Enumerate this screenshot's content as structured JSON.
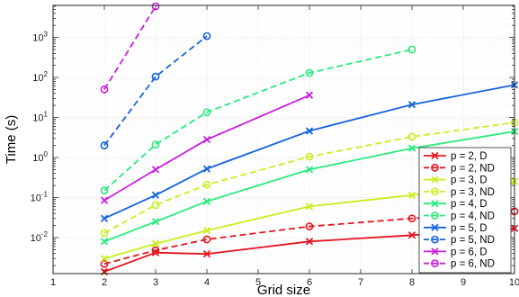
{
  "chart_data": {
    "type": "line",
    "title": "",
    "xlabel": "Grid size",
    "ylabel": "Time (s)",
    "xlim": [
      1,
      10
    ],
    "ylim_log10": [
      -2.9,
      3.8
    ],
    "y_scale": "log",
    "grid": true,
    "legend_placement": "right",
    "x_ticks": [
      1,
      2,
      3,
      4,
      5,
      6,
      7,
      8,
      9,
      10
    ],
    "y_ticks": [
      {
        "exp": -2,
        "base": "10",
        "sup": "-2"
      },
      {
        "exp": -1,
        "base": "10",
        "sup": "-1"
      },
      {
        "exp": 0,
        "base": "10",
        "sup": "0"
      },
      {
        "exp": 1,
        "base": "10",
        "sup": "1"
      },
      {
        "exp": 2,
        "base": "10",
        "sup": "2"
      },
      {
        "exp": 3,
        "base": "10",
        "sup": "3"
      }
    ],
    "series": [
      {
        "name": "p = 2, D",
        "color": "#e6141e",
        "dash": false,
        "marker": "x",
        "x": [
          2,
          3,
          4,
          6,
          8,
          10
        ],
        "y": [
          0.0014,
          0.0042,
          0.0039,
          0.008,
          0.0115,
          0.017
        ]
      },
      {
        "name": "p = 2, ND",
        "color": "#e6141e",
        "dash": true,
        "marker": "o",
        "x": [
          2,
          3,
          4,
          6,
          8,
          10
        ],
        "y": [
          0.0022,
          0.0048,
          0.009,
          0.019,
          0.03,
          0.045
        ]
      },
      {
        "name": "p = 3, D",
        "color": "#c8f01e",
        "dash": false,
        "marker": "x",
        "x": [
          2,
          3,
          4,
          6,
          8,
          10
        ],
        "y": [
          0.003,
          0.007,
          0.015,
          0.06,
          0.115,
          0.25
        ]
      },
      {
        "name": "p = 3, ND",
        "color": "#c8f01e",
        "dash": true,
        "marker": "o",
        "x": [
          2,
          3,
          4,
          6,
          8,
          10
        ],
        "y": [
          0.013,
          0.065,
          0.21,
          1.05,
          3.3,
          7.5
        ]
      },
      {
        "name": "p = 4, D",
        "color": "#28eb7d",
        "dash": false,
        "marker": "x",
        "x": [
          2,
          3,
          4,
          6,
          8,
          10
        ],
        "y": [
          0.008,
          0.025,
          0.08,
          0.5,
          1.7,
          4.5
        ]
      },
      {
        "name": "p = 4, ND",
        "color": "#28eb7d",
        "dash": true,
        "marker": "o",
        "x": [
          2,
          3,
          4,
          6,
          8
        ],
        "y": [
          0.15,
          2.1,
          13.5,
          130,
          500
        ]
      },
      {
        "name": "p = 5, D",
        "color": "#1464dc",
        "dash": false,
        "marker": "x",
        "x": [
          2,
          3,
          4,
          6,
          8,
          10
        ],
        "y": [
          0.03,
          0.115,
          0.52,
          4.6,
          21,
          65
        ]
      },
      {
        "name": "p = 5, ND",
        "color": "#1464dc",
        "dash": true,
        "marker": "o",
        "x": [
          2,
          3,
          4
        ],
        "y": [
          2.0,
          105,
          1080
        ]
      },
      {
        "name": "p = 6, D",
        "color": "#c81edc",
        "dash": false,
        "marker": "x",
        "x": [
          2,
          3,
          4,
          6
        ],
        "y": [
          0.085,
          0.5,
          2.8,
          36
        ]
      },
      {
        "name": "p = 6, ND",
        "color": "#c81edc",
        "dash": true,
        "marker": "o",
        "x": [
          2,
          3
        ],
        "y": [
          50,
          6000
        ]
      }
    ]
  }
}
